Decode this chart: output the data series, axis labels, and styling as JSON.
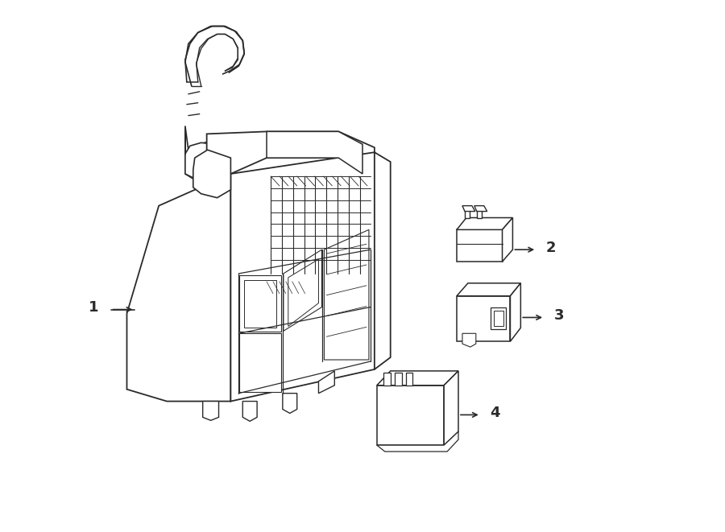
{
  "background_color": "#ffffff",
  "line_color": "#2a2a2a",
  "lw": 1.1,
  "fig_width": 9.0,
  "fig_height": 6.61
}
